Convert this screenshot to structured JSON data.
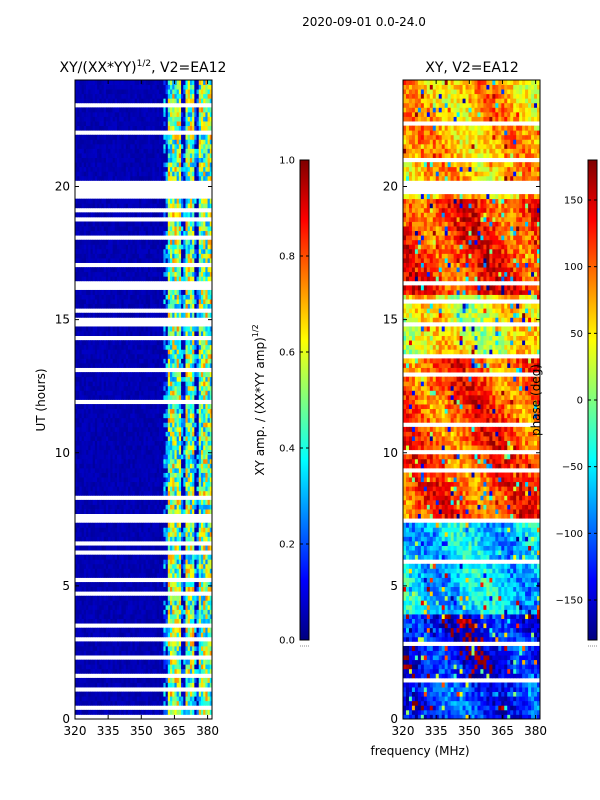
{
  "figure": {
    "suptitle": "2020-09-01 0.0-24.0",
    "xlabel_shared": "frequency (MHz)"
  },
  "chart_data": [
    {
      "type": "heatmap",
      "title": "XY/(XX*YY)^{1/2}, V2=EA12",
      "title_main": "XY/(XX*YY)",
      "title_sup": "1/2",
      "title_tail": ", V2=EA12",
      "xlabel": "",
      "ylabel": "UT (hours)",
      "xlim": [
        320,
        382
      ],
      "ylim": [
        0,
        24
      ],
      "xticks": [
        320,
        335,
        350,
        365,
        380
      ],
      "yticks": [
        0,
        5,
        10,
        15,
        20
      ],
      "colorbar": {
        "label": "XY amp. / (XX*YY amp)^{1/2}",
        "label_main": "XY amp. / (XX*YY amp)",
        "label_sup": "1/2",
        "range": [
          0.0,
          1.0
        ],
        "ticks": [
          0.0,
          0.2,
          0.4,
          0.6,
          0.8,
          1.0
        ],
        "tick_labels": [
          "0.0",
          "0.2",
          "0.4",
          "0.6",
          "0.8",
          "1.0"
        ],
        "colormap": "jet"
      },
      "bright_channels_MHz": [
        [
          362,
          368
        ],
        [
          370,
          374
        ],
        [
          376,
          379
        ],
        [
          379.5,
          382
        ]
      ],
      "blank_intervals_UT": [
        [
          0.0,
          0.15
        ],
        [
          0.4,
          0.5
        ],
        [
          1.1,
          1.2
        ],
        [
          1.6,
          1.7
        ],
        [
          2.3,
          2.4
        ],
        [
          3.0,
          3.1
        ],
        [
          3.5,
          3.6
        ],
        [
          4.1,
          4.2
        ],
        [
          4.7,
          4.8
        ],
        [
          5.2,
          5.3
        ],
        [
          5.6,
          5.7
        ],
        [
          6.2,
          6.3
        ],
        [
          6.6,
          6.7
        ],
        [
          7.0,
          7.1
        ],
        [
          7.4,
          7.7
        ],
        [
          8.3,
          8.4
        ],
        [
          9.2,
          9.3
        ],
        [
          10.6,
          10.7
        ],
        [
          11.1,
          11.2
        ],
        [
          11.9,
          12.0
        ],
        [
          12.5,
          12.6
        ],
        [
          13.1,
          13.2
        ],
        [
          13.7,
          13.8
        ],
        [
          14.2,
          14.4
        ],
        [
          14.8,
          15.1
        ],
        [
          15.3,
          15.4
        ],
        [
          15.7,
          15.8
        ],
        [
          16.2,
          16.4
        ],
        [
          17.0,
          17.1
        ],
        [
          18.0,
          18.1
        ],
        [
          18.7,
          18.8
        ],
        [
          19.1,
          19.2
        ],
        [
          19.6,
          20.3
        ],
        [
          21.2,
          21.3
        ],
        [
          22.0,
          22.1
        ],
        [
          22.6,
          22.7
        ],
        [
          23.0,
          23.1
        ],
        [
          23.3,
          23.4
        ]
      ]
    },
    {
      "type": "heatmap",
      "title": "XY, V2=EA12",
      "xlabel": "frequency (MHz)",
      "ylabel": "",
      "xlim": [
        320,
        382
      ],
      "ylim": [
        0,
        24
      ],
      "xticks": [
        320,
        335,
        350,
        365,
        380
      ],
      "yticks": [
        0,
        5,
        10,
        15,
        20
      ],
      "colorbar": {
        "label": "phase (deg)",
        "range": [
          -180,
          180
        ],
        "ticks": [
          -150,
          -100,
          -50,
          0,
          50,
          100,
          150
        ],
        "tick_labels": [
          "−150",
          "−100",
          "−50",
          "0",
          "50",
          "100",
          "150"
        ],
        "colormap": "jet"
      },
      "phase_bands_UT": [
        {
          "from": 0,
          "to": 1.5,
          "phase_deg": -120
        },
        {
          "from": 1.5,
          "to": 4,
          "phase_deg": -140
        },
        {
          "from": 4,
          "to": 7.5,
          "phase_deg": -60
        },
        {
          "from": 7.5,
          "to": 13.5,
          "phase_deg": 110
        },
        {
          "from": 13.5,
          "to": 16,
          "phase_deg": 40
        },
        {
          "from": 16,
          "to": 19.5,
          "phase_deg": 120
        },
        {
          "from": 19.5,
          "to": 24,
          "phase_deg": 70
        }
      ],
      "blank_intervals_UT": [
        [
          0.3,
          0.4
        ],
        [
          1.4,
          1.5
        ],
        [
          2.8,
          2.9
        ],
        [
          5.9,
          6.0
        ],
        [
          7.4,
          7.6
        ],
        [
          8.0,
          8.1
        ],
        [
          9.3,
          9.4
        ],
        [
          10.0,
          10.1
        ],
        [
          11.0,
          11.1
        ],
        [
          12.9,
          13.0
        ],
        [
          13.6,
          13.7
        ],
        [
          14.0,
          14.1
        ],
        [
          14.7,
          15.0
        ],
        [
          15.6,
          15.7
        ],
        [
          16.3,
          16.5
        ],
        [
          17.8,
          17.9
        ],
        [
          19.0,
          19.1
        ],
        [
          19.7,
          20.2
        ],
        [
          20.5,
          20.6
        ],
        [
          21.0,
          21.1
        ],
        [
          22.3,
          22.4
        ],
        [
          23.3,
          23.4
        ]
      ]
    }
  ]
}
